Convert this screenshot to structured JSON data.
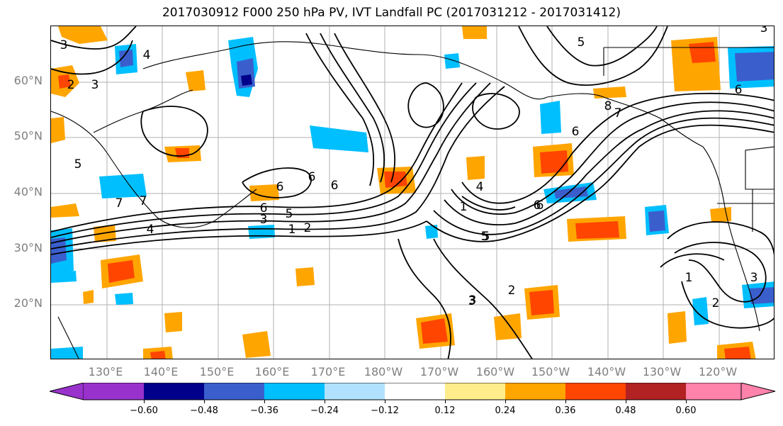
{
  "title": "2017030912 F000 250 hPa PV, IVT Landfall PC (2017031212 - 2017031412)",
  "lat_labels": [
    "60°N",
    "50°N",
    "40°N",
    "30°N",
    "20°N"
  ],
  "lon_labels": [
    "130°E",
    "140°E",
    "150°E",
    "160°E",
    "170°E",
    "180°W",
    "170°W",
    "160°W",
    "150°W",
    "140°W",
    "130°W",
    "120°W"
  ],
  "colorbar": {
    "labels": [
      "-0.60",
      "-0.48",
      "-0.36",
      "-0.24",
      "-0.12",
      "0.12",
      "0.24",
      "0.36",
      "0.48",
      "0.60"
    ],
    "colors": [
      "#9932cc",
      "#00008b",
      "#3a5fcd",
      "#00bfff",
      "#b0e2ff",
      "#ffffff",
      "#ffec8b",
      "#ffa500",
      "#ff4500",
      "#b22222",
      "#ff82ab"
    ]
  },
  "contour_labels": [
    "3",
    "2",
    "3",
    "4",
    "5",
    "6",
    "5",
    "6",
    "4",
    "3",
    "1",
    "1",
    "2",
    "3",
    "5",
    "6",
    "5",
    "6",
    "7",
    "8",
    "6",
    "7",
    "6",
    "1",
    "3",
    "2",
    "3",
    "4",
    "6",
    "7",
    "5",
    "2",
    "3",
    "6"
  ],
  "colors": {
    "grid": "#b0b0b0",
    "contour": "#000000",
    "tick_text": "#7f7f7f"
  }
}
